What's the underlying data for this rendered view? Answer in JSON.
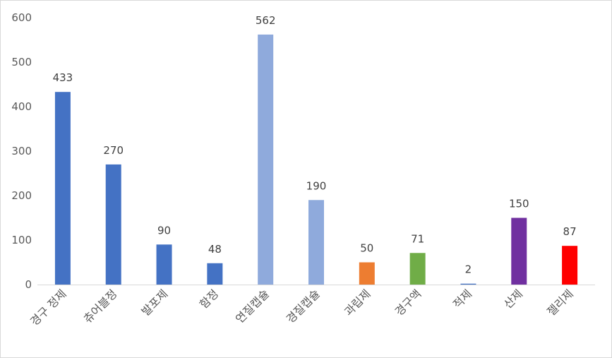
{
  "chart_data": {
    "type": "bar",
    "categories": [
      "경구 정제",
      "츄어블정",
      "발포제",
      "함정",
      "연질캡슐",
      "경질캡슐",
      "과립제",
      "경구액",
      "적제",
      "산제",
      "젤리제"
    ],
    "values": [
      433,
      270,
      90,
      48,
      562,
      190,
      50,
      71,
      2,
      150,
      87
    ],
    "data_labels": [
      "433",
      "270",
      "90",
      "48",
      "562",
      "190",
      "50",
      "71",
      "2",
      "150",
      "87"
    ],
    "bar_colors": [
      "#4472C4",
      "#4472C4",
      "#4472C4",
      "#4472C4",
      "#8FAADC",
      "#8FAADC",
      "#ED7D31",
      "#70AD47",
      "#4472C4",
      "#7030A0",
      "#FF0000"
    ],
    "y_ticks": [
      "0",
      "100",
      "200",
      "300",
      "400",
      "500",
      "600"
    ],
    "ylim": [
      0,
      600
    ],
    "grid": false,
    "legend": "none",
    "title": "",
    "xlabel": "",
    "ylabel": ""
  }
}
